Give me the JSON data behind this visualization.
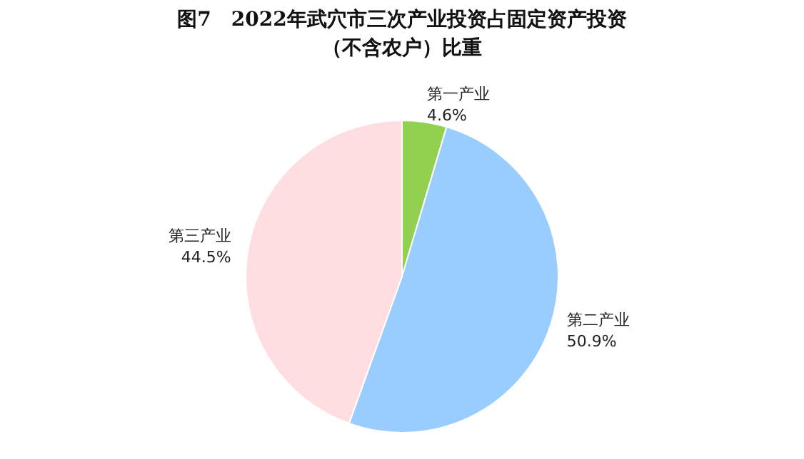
{
  "chart_data": {
    "type": "pie",
    "title": "图7　2022年武穴市三次产业投资占固定资产投资",
    "subtitle": "（不含农户）比重",
    "categories": [
      "第一产业",
      "第二产业",
      "第三产业"
    ],
    "values": [
      4.6,
      50.9,
      44.5
    ],
    "value_labels": [
      "4.6%",
      "50.9%",
      "44.5%"
    ],
    "colors": [
      "#92d050",
      "#99ccff",
      "#ffdde0"
    ],
    "legend": false
  }
}
